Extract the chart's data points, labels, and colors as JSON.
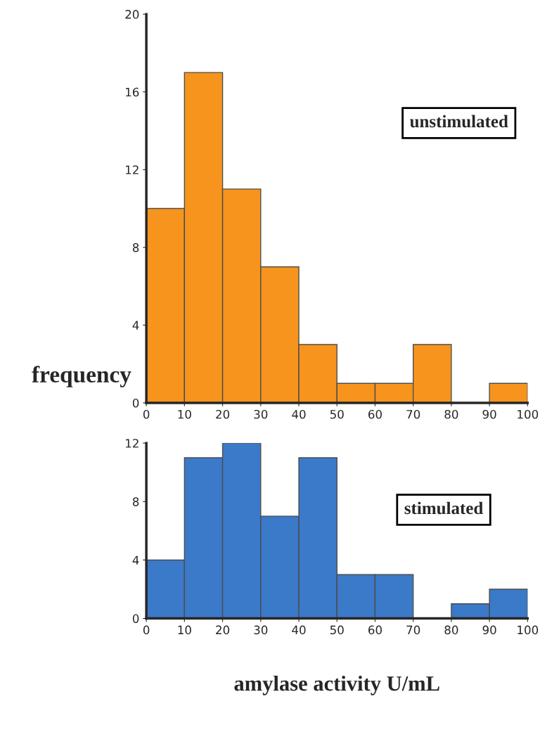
{
  "chart_data": [
    {
      "type": "histogram",
      "ylabel": "frequency",
      "bins": [
        0,
        10,
        20,
        30,
        40,
        50,
        60,
        70,
        80,
        90,
        100
      ],
      "values": [
        10,
        17,
        11,
        7,
        3,
        1,
        1,
        3,
        0,
        1
      ],
      "color": "#f7941d",
      "xlim": [
        0,
        100
      ],
      "xticks": [
        0,
        10,
        20,
        30,
        40,
        50,
        60,
        70,
        80,
        90,
        100
      ],
      "ylim": [
        0,
        20
      ],
      "yticks": [
        0,
        4,
        8,
        12,
        16,
        20
      ],
      "annotations": [
        "unstimulated"
      ]
    },
    {
      "type": "histogram",
      "xlabel": "amylase activity U/mL",
      "bins": [
        0,
        10,
        20,
        30,
        40,
        50,
        60,
        70,
        80,
        90,
        100
      ],
      "values": [
        4,
        11,
        12,
        7,
        11,
        3,
        3,
        0,
        1,
        2
      ],
      "color": "#3b79c9",
      "xlim": [
        0,
        100
      ],
      "xticks": [
        0,
        10,
        20,
        30,
        40,
        50,
        60,
        70,
        80,
        90,
        100
      ],
      "ylim": [
        0,
        12
      ],
      "yticks": [
        0,
        4,
        8,
        12
      ],
      "annotations": [
        "stimulated"
      ]
    }
  ]
}
